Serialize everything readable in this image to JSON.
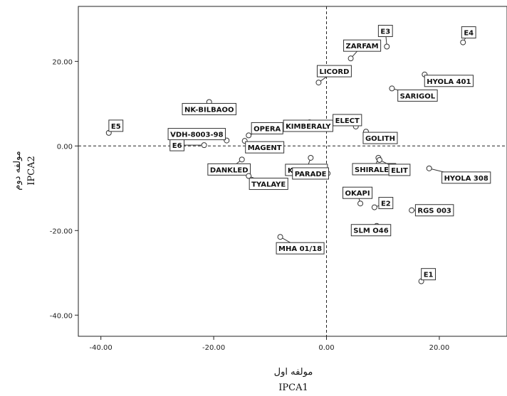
{
  "chart_data": {
    "type": "scatter",
    "title": "",
    "xlabel": "IPCA1",
    "xlabel_fa": "مولفه اول",
    "ylabel": "IPCA2",
    "ylabel_fa": "مولفه دوم",
    "xlim": [
      -44,
      32
    ],
    "ylim": [
      -45,
      33
    ],
    "xticks": [
      -40,
      -20,
      0,
      20
    ],
    "yticks": [
      -40,
      -20,
      0,
      20
    ],
    "xtick_labels": [
      "-40.00",
      "-20.00",
      "0.00",
      "20.00"
    ],
    "ytick_labels": [
      "-40.00",
      "-20.00",
      "0.00",
      "20.00"
    ],
    "reference_lines": {
      "x": 0,
      "y": 0,
      "style": "dashed"
    },
    "grid": false,
    "points": [
      {
        "label": "E1",
        "x": 16.8,
        "y": -32.0
      },
      {
        "label": "E2",
        "x": 8.5,
        "y": -14.5
      },
      {
        "label": "E3",
        "x": 10.7,
        "y": 23.5
      },
      {
        "label": "E4",
        "x": 24.2,
        "y": 24.5
      },
      {
        "label": "E5",
        "x": -38.6,
        "y": 3.1
      },
      {
        "label": "E6",
        "x": -21.7,
        "y": 0.2
      },
      {
        "label": "ZARFAM",
        "x": 4.3,
        "y": 20.7
      },
      {
        "label": "LICORD",
        "x": -1.4,
        "y": 15.0
      },
      {
        "label": "HYOLA 401",
        "x": 17.4,
        "y": 16.9
      },
      {
        "label": "SARIGOL",
        "x": 11.6,
        "y": 13.6
      },
      {
        "label": "NK-BILBAOO",
        "x": -20.8,
        "y": 10.4
      },
      {
        "label": "ELECT",
        "x": 5.2,
        "y": 4.6
      },
      {
        "label": "KIMBERALY",
        "x": -3.0,
        "y": 5.6
      },
      {
        "label": "GOLITH",
        "x": 7.0,
        "y": 3.4
      },
      {
        "label": "OPERA",
        "x": -13.8,
        "y": 2.5
      },
      {
        "label": "VDH-8003-98",
        "x": -17.7,
        "y": 1.3
      },
      {
        "label": "MAGENT",
        "x": -14.5,
        "y": 1.2
      },
      {
        "label": "KRISTINA",
        "x": -2.8,
        "y": -2.8
      },
      {
        "label": "DANKLED",
        "x": -15.0,
        "y": -3.2
      },
      {
        "label": "SHIRALEE",
        "x": 9.2,
        "y": -2.8
      },
      {
        "label": "ELIT",
        "x": 9.4,
        "y": -3.3
      },
      {
        "label": "HYOLA 308",
        "x": 18.2,
        "y": -5.3
      },
      {
        "label": "PARADE",
        "x": 0.2,
        "y": -6.5
      },
      {
        "label": "TYALAYE",
        "x": -13.8,
        "y": -7.1
      },
      {
        "label": "OKAPI",
        "x": 6.0,
        "y": -13.6
      },
      {
        "label": "SLM O46",
        "x": 8.9,
        "y": -18.9
      },
      {
        "label": "RGS 003",
        "x": 15.1,
        "y": -15.2
      },
      {
        "label": "MHA 01/18",
        "x": -8.2,
        "y": -21.5
      }
    ]
  }
}
